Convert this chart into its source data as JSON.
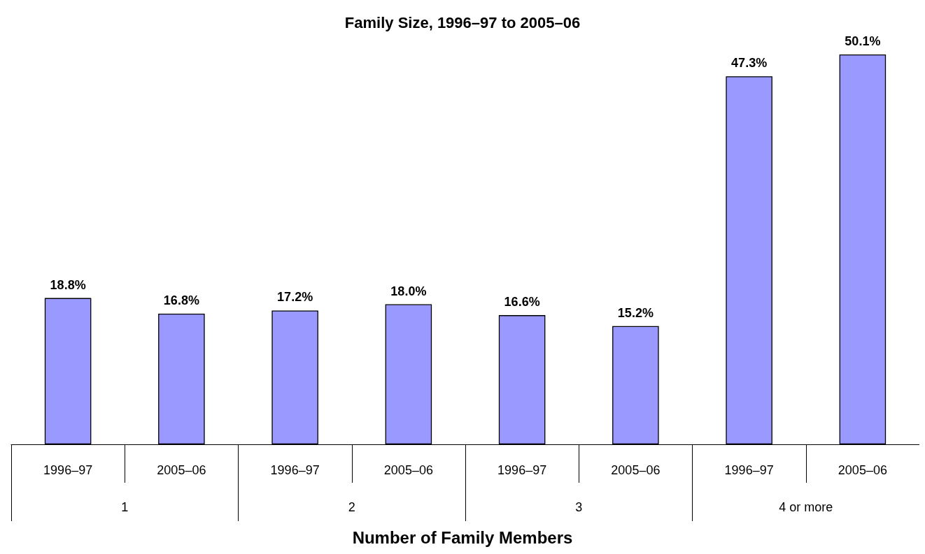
{
  "chart_data": {
    "type": "bar",
    "title": "Family Size, 1996–97 to 2005–06",
    "xlabel": "Number of Family Members",
    "categories": [
      "1996–97",
      "2005–06",
      "1996–97",
      "2005–06",
      "1996–97",
      "2005–06",
      "1996–97",
      "2005–06"
    ],
    "annotations": [
      "1",
      "2",
      "3",
      "4 or more"
    ],
    "values": [
      18.8,
      16.8,
      17.2,
      18.0,
      16.6,
      15.2,
      47.3,
      50.1
    ],
    "value_labels": [
      "18.8%",
      "16.8%",
      "17.2%",
      "18.0%",
      "16.6%",
      "15.2%",
      "47.3%",
      "50.1%"
    ],
    "color": "#9999ff"
  }
}
